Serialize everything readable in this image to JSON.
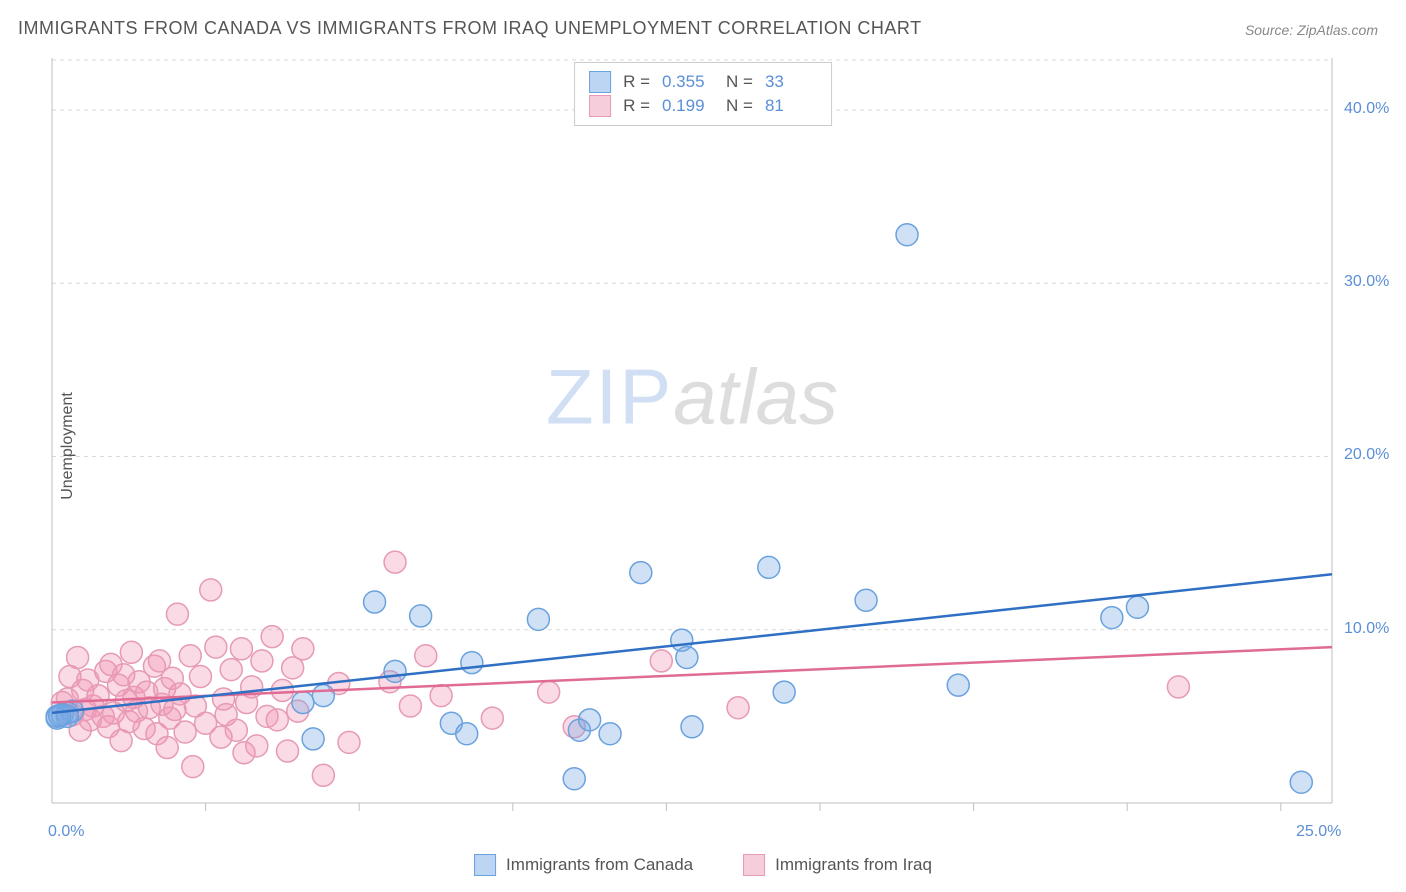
{
  "title": "IMMIGRANTS FROM CANADA VS IMMIGRANTS FROM IRAQ UNEMPLOYMENT CORRELATION CHART",
  "source": "Source: ZipAtlas.com",
  "ylabel": "Unemployment",
  "watermark": {
    "part1": "ZIP",
    "part2": "atlas"
  },
  "colors": {
    "series_a_fill": "rgba(120,170,230,0.35)",
    "series_a_stroke": "#6aa2de",
    "series_b_fill": "rgba(240,150,180,0.35)",
    "series_b_stroke": "#e69ab5",
    "line_a": "#2f6fc4",
    "line_b": "#e06b95",
    "grid": "#d9d9d9",
    "axis": "#bfbfbf",
    "tick_text": "#5b8fd6",
    "text": "#555555",
    "swatch_a_fill": "#bcd5f2",
    "swatch_a_border": "#6aa2de",
    "swatch_b_fill": "#f6cddb",
    "swatch_b_border": "#e69ab5"
  },
  "chart": {
    "type": "scatter",
    "xlim": [
      0,
      25
    ],
    "ylim": [
      0,
      43
    ],
    "xticks": [
      0,
      25
    ],
    "xtick_minor": [
      3,
      6,
      9,
      12,
      15,
      18,
      21,
      24
    ],
    "yticks": [
      10,
      20,
      30,
      40
    ],
    "ytick_labels": [
      "10.0%",
      "20.0%",
      "30.0%",
      "40.0%"
    ],
    "xtick_labels": [
      "0.0%",
      "25.0%"
    ],
    "marker_radius": 11,
    "marker_stroke_width": 1.5,
    "line_width": 2.5,
    "bg": "#ffffff"
  },
  "legend_bottom": {
    "a": "Immigrants from Canada",
    "b": "Immigrants from Iraq"
  },
  "stats": {
    "a": {
      "R_label": "R =",
      "R": "0.355",
      "N_label": "N =",
      "N": "33"
    },
    "b": {
      "R_label": "R =",
      "R": "0.199",
      "N_label": "N =",
      "N": "81"
    }
  },
  "series_a": {
    "regression": {
      "x0": 0,
      "y0": 5.2,
      "x1": 25,
      "y1": 13.2
    },
    "points": [
      [
        0.1,
        5.0
      ],
      [
        0.2,
        5.1
      ],
      [
        0.3,
        5.2
      ],
      [
        0.4,
        5.3
      ],
      [
        4.9,
        5.8
      ],
      [
        5.1,
        3.7
      ],
      [
        5.3,
        6.2
      ],
      [
        6.3,
        11.6
      ],
      [
        6.7,
        7.6
      ],
      [
        7.2,
        10.8
      ],
      [
        7.8,
        4.6
      ],
      [
        8.1,
        4.0
      ],
      [
        8.2,
        8.1
      ],
      [
        9.5,
        10.6
      ],
      [
        10.2,
        1.4
      ],
      [
        10.3,
        4.2
      ],
      [
        10.5,
        4.8
      ],
      [
        10.9,
        4.0
      ],
      [
        11.5,
        13.3
      ],
      [
        12.3,
        9.4
      ],
      [
        12.4,
        8.4
      ],
      [
        12.5,
        4.4
      ],
      [
        14.0,
        13.6
      ],
      [
        14.3,
        6.4
      ],
      [
        15.9,
        11.7
      ],
      [
        16.7,
        32.8
      ],
      [
        17.7,
        6.8
      ],
      [
        20.7,
        10.7
      ],
      [
        21.2,
        11.3
      ],
      [
        24.4,
        1.2
      ],
      [
        0.1,
        4.9
      ],
      [
        0.3,
        5.0
      ],
      [
        0.15,
        5.05
      ]
    ]
  },
  "series_b": {
    "regression": {
      "x0": 0,
      "y0": 5.8,
      "x1": 25,
      "y1": 9.0
    },
    "points": [
      [
        0.2,
        5.8
      ],
      [
        0.3,
        6.0
      ],
      [
        0.35,
        7.3
      ],
      [
        0.4,
        5.1
      ],
      [
        0.5,
        8.4
      ],
      [
        0.55,
        4.2
      ],
      [
        0.6,
        6.5
      ],
      [
        0.65,
        5.4
      ],
      [
        0.7,
        7.1
      ],
      [
        0.75,
        4.8
      ],
      [
        0.8,
        5.6
      ],
      [
        0.9,
        6.2
      ],
      [
        1.0,
        5.0
      ],
      [
        1.05,
        7.6
      ],
      [
        1.1,
        4.4
      ],
      [
        1.15,
        8.0
      ],
      [
        1.2,
        5.2
      ],
      [
        1.3,
        6.8
      ],
      [
        1.35,
        3.6
      ],
      [
        1.4,
        7.4
      ],
      [
        1.45,
        5.9
      ],
      [
        1.5,
        4.7
      ],
      [
        1.55,
        8.7
      ],
      [
        1.6,
        6.1
      ],
      [
        1.65,
        5.3
      ],
      [
        1.7,
        7.0
      ],
      [
        1.8,
        4.3
      ],
      [
        1.85,
        6.4
      ],
      [
        1.9,
        5.5
      ],
      [
        2.0,
        7.9
      ],
      [
        2.05,
        4.0
      ],
      [
        2.1,
        8.2
      ],
      [
        2.15,
        5.7
      ],
      [
        2.2,
        6.6
      ],
      [
        2.25,
        3.2
      ],
      [
        2.3,
        4.9
      ],
      [
        2.35,
        7.2
      ],
      [
        2.4,
        5.4
      ],
      [
        2.45,
        10.9
      ],
      [
        2.5,
        6.3
      ],
      [
        2.6,
        4.1
      ],
      [
        2.7,
        8.5
      ],
      [
        2.75,
        2.1
      ],
      [
        2.8,
        5.6
      ],
      [
        2.9,
        7.3
      ],
      [
        3.0,
        4.6
      ],
      [
        3.1,
        12.3
      ],
      [
        3.2,
        9.0
      ],
      [
        3.3,
        3.8
      ],
      [
        3.35,
        6.0
      ],
      [
        3.4,
        5.1
      ],
      [
        3.5,
        7.7
      ],
      [
        3.6,
        4.2
      ],
      [
        3.7,
        8.9
      ],
      [
        3.75,
        2.9
      ],
      [
        3.8,
        5.8
      ],
      [
        3.9,
        6.7
      ],
      [
        4.0,
        3.3
      ],
      [
        4.1,
        8.2
      ],
      [
        4.2,
        5.0
      ],
      [
        4.3,
        9.6
      ],
      [
        4.4,
        4.8
      ],
      [
        4.5,
        6.5
      ],
      [
        4.6,
        3.0
      ],
      [
        4.7,
        7.8
      ],
      [
        4.8,
        5.3
      ],
      [
        4.9,
        8.9
      ],
      [
        5.3,
        1.6
      ],
      [
        5.6,
        6.9
      ],
      [
        5.8,
        3.5
      ],
      [
        6.6,
        7.0
      ],
      [
        6.7,
        13.9
      ],
      [
        7.0,
        5.6
      ],
      [
        7.3,
        8.5
      ],
      [
        7.6,
        6.2
      ],
      [
        8.6,
        4.9
      ],
      [
        9.7,
        6.4
      ],
      [
        10.2,
        4.4
      ],
      [
        11.9,
        8.2
      ],
      [
        13.4,
        5.5
      ],
      [
        22.0,
        6.7
      ]
    ]
  }
}
